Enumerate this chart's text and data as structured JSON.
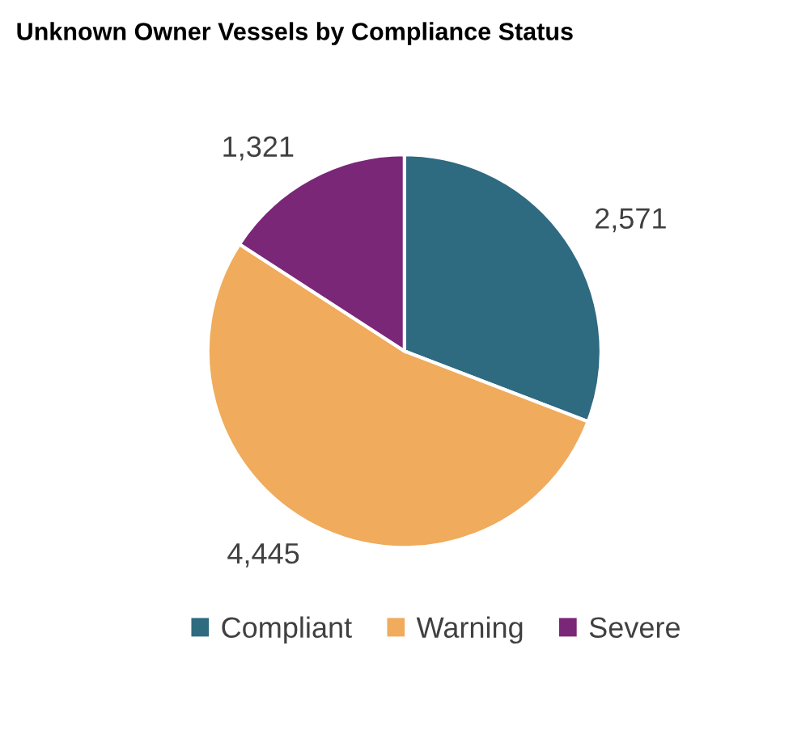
{
  "chart_data": {
    "type": "pie",
    "title": "Unknown Owner Vessels by Compliance Status",
    "categories": [
      "Compliant",
      "Warning",
      "Severe"
    ],
    "values": [
      2571,
      4445,
      1321
    ],
    "colors": [
      "#2e6a80",
      "#f0ab5c",
      "#7a2778"
    ],
    "value_labels": [
      "2,571",
      "4,445",
      "1,321"
    ],
    "legend": "bottom"
  }
}
